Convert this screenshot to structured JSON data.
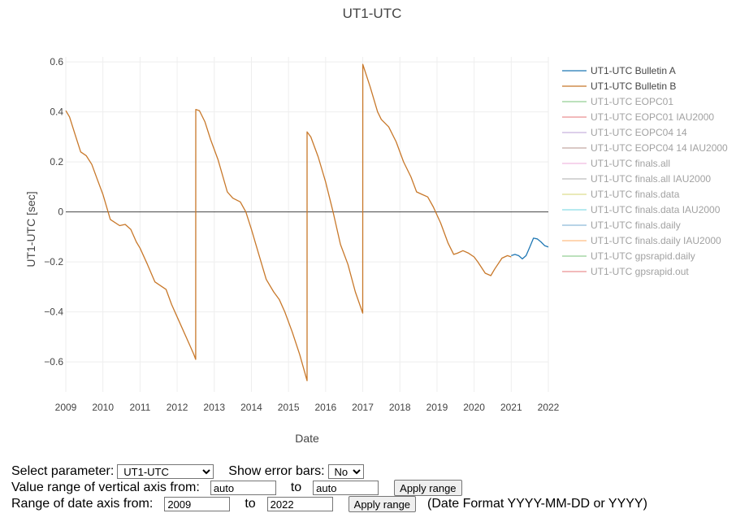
{
  "chart_data": {
    "type": "line",
    "title": "UT1-UTC",
    "xlabel": "Date",
    "ylabel": "UT1-UTC [sec]",
    "xlim": [
      2009,
      2022
    ],
    "ylim": [
      -0.72,
      0.62
    ],
    "x_ticks": [
      "2009",
      "2010",
      "2011",
      "2012",
      "2013",
      "2014",
      "2015",
      "2016",
      "2017",
      "2018",
      "2019",
      "2020",
      "2021",
      "2022"
    ],
    "y_ticks": [
      0.6,
      0.4,
      0.2,
      0,
      -0.2,
      -0.4,
      -0.6
    ],
    "y_tick_labels": [
      "0.6",
      "0.4",
      "0.2",
      "0",
      "−0.2",
      "−0.4",
      "−0.6"
    ],
    "zero_line": 0,
    "grid": true,
    "legend_position": "right",
    "series": [
      {
        "name": "UT1-UTC Bulletin A",
        "color": "#1f77b4",
        "visible": true,
        "x": [
          2021.0,
          2021.1,
          2021.2,
          2021.3,
          2021.4,
          2021.5,
          2021.6,
          2021.7,
          2021.8,
          2021.9,
          2022.0
        ],
        "y": [
          -0.175,
          -0.17,
          -0.175,
          -0.188,
          -0.175,
          -0.14,
          -0.105,
          -0.108,
          -0.12,
          -0.135,
          -0.14
        ]
      },
      {
        "name": "UT1-UTC Bulletin B",
        "color": "#c8782a",
        "visible": true,
        "x": [
          2009.0,
          2009.1,
          2009.25,
          2009.4,
          2009.55,
          2009.7,
          2009.85,
          2010.0,
          2010.2,
          2010.45,
          2010.6,
          2010.75,
          2010.9,
          2011.0,
          2011.2,
          2011.4,
          2011.55,
          2011.7,
          2011.85,
          2012.0,
          2012.3,
          2012.45,
          2012.499,
          2012.501,
          2012.6,
          2012.75,
          2012.9,
          2013.1,
          2013.35,
          2013.5,
          2013.7,
          2013.85,
          2014.0,
          2014.2,
          2014.4,
          2014.6,
          2014.75,
          2014.9,
          2015.1,
          2015.3,
          2015.499,
          2015.501,
          2015.6,
          2015.8,
          2016.0,
          2016.2,
          2016.4,
          2016.6,
          2016.8,
          2016.999,
          2017.001,
          2017.2,
          2017.4,
          2017.5,
          2017.7,
          2017.9,
          2018.1,
          2018.3,
          2018.45,
          2018.6,
          2018.75,
          2018.9,
          2019.1,
          2019.3,
          2019.45,
          2019.55,
          2019.7,
          2019.85,
          2020.0,
          2020.1,
          2020.3,
          2020.45,
          2020.55,
          2020.75,
          2020.9,
          2021.0
        ],
        "y": [
          0.405,
          0.38,
          0.31,
          0.24,
          0.225,
          0.19,
          0.13,
          0.07,
          -0.03,
          -0.055,
          -0.05,
          -0.07,
          -0.12,
          -0.145,
          -0.21,
          -0.28,
          -0.295,
          -0.31,
          -0.37,
          -0.42,
          -0.52,
          -0.57,
          -0.59,
          0.41,
          0.405,
          0.36,
          0.29,
          0.21,
          0.08,
          0.055,
          0.04,
          0.0,
          -0.07,
          -0.17,
          -0.27,
          -0.32,
          -0.35,
          -0.4,
          -0.48,
          -0.57,
          -0.675,
          0.32,
          0.3,
          0.22,
          0.12,
          0.0,
          -0.13,
          -0.21,
          -0.32,
          -0.405,
          0.59,
          0.5,
          0.4,
          0.37,
          0.34,
          0.28,
          0.2,
          0.14,
          0.08,
          0.07,
          0.06,
          0.02,
          -0.045,
          -0.125,
          -0.17,
          -0.165,
          -0.155,
          -0.165,
          -0.18,
          -0.2,
          -0.245,
          -0.255,
          -0.23,
          -0.185,
          -0.175,
          -0.18
        ]
      },
      {
        "name": "UT1-UTC EOPC01",
        "color": "#2ca02c",
        "visible": false
      },
      {
        "name": "UT1-UTC EOPC01 IAU2000",
        "color": "#d62728",
        "visible": false
      },
      {
        "name": "UT1-UTC EOPC04 14",
        "color": "#9467bd",
        "visible": false
      },
      {
        "name": "UT1-UTC EOPC04 14 IAU2000",
        "color": "#8c564b",
        "visible": false
      },
      {
        "name": "UT1-UTC finals.all",
        "color": "#e377c2",
        "visible": false
      },
      {
        "name": "UT1-UTC finals.all IAU2000",
        "color": "#7f7f7f",
        "visible": false
      },
      {
        "name": "UT1-UTC finals.data",
        "color": "#bcbd22",
        "visible": false
      },
      {
        "name": "UT1-UTC finals.data IAU2000",
        "color": "#17becf",
        "visible": false
      },
      {
        "name": "UT1-UTC finals.daily",
        "color": "#1f77b4",
        "visible": false
      },
      {
        "name": "UT1-UTC finals.daily IAU2000",
        "color": "#ff7f0e",
        "visible": false
      },
      {
        "name": "UT1-UTC gpsrapid.daily",
        "color": "#2ca02c",
        "visible": false
      },
      {
        "name": "UT1-UTC gpsrapid.out",
        "color": "#d62728",
        "visible": false
      }
    ]
  },
  "controls": {
    "select_parameter_label": "Select parameter:",
    "parameter_value": "UT1-UTC",
    "show_error_bars_label": "Show error bars:",
    "error_bars_value": "No",
    "value_range_label": "Value range of vertical axis from:",
    "value_from": "auto",
    "value_to_label": "to",
    "value_to": "auto",
    "apply_range_label": "Apply range",
    "date_range_label": "Range of date axis from:",
    "date_from": "2009",
    "date_to_label": "to",
    "date_to": "2022",
    "apply_range_label_2": "Apply range",
    "date_format_note": "(Date Format YYYY-MM-DD or YYYY)"
  }
}
